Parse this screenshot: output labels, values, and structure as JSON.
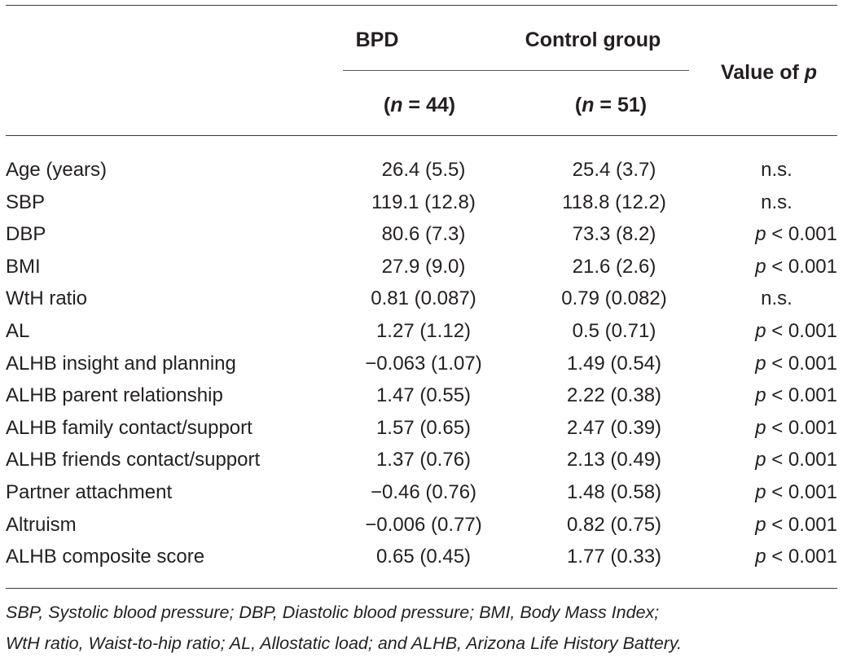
{
  "header": {
    "bpd": "BPD",
    "control": "Control group",
    "n_bpd_prefix": "(",
    "n_var": "n",
    "n_bpd_suffix": " = 44)",
    "n_ctrl_suffix": " = 51)",
    "p_label": "Value of ",
    "p_var": "p"
  },
  "rows": [
    {
      "label": "Age (years)",
      "bpd": "26.4 (5.5)",
      "ctrl": "25.4 (3.7)",
      "p": "n.s."
    },
    {
      "label": "SBP",
      "bpd": "119.1 (12.8)",
      "ctrl": "118.8 (12.2)",
      "p": "n.s."
    },
    {
      "label": "DBP",
      "bpd": "80.6 (7.3)",
      "ctrl": "73.3 (8.2)",
      "p_var": "p",
      "p": " < 0.001"
    },
    {
      "label": "BMI",
      "bpd": "27.9 (9.0)",
      "ctrl": "21.6 (2.6)",
      "p_var": "p",
      "p": " < 0.001"
    },
    {
      "label": "WtH ratio",
      "bpd": "0.81 (0.087)",
      "ctrl": "0.79 (0.082)",
      "p": "n.s."
    },
    {
      "label": "AL",
      "bpd": "1.27 (1.12)",
      "ctrl": "0.5 (0.71)",
      "p_var": "p",
      "p": " < 0.001"
    },
    {
      "label": "ALHB insight and planning",
      "bpd": "−0.063 (1.07)",
      "ctrl": "1.49 (0.54)",
      "p_var": "p",
      "p": " < 0.001"
    },
    {
      "label": "ALHB parent relationship",
      "bpd": "1.47 (0.55)",
      "ctrl": "2.22 (0.38)",
      "p_var": "p",
      "p": " < 0.001"
    },
    {
      "label": "ALHB family contact/support",
      "bpd": "1.57 (0.65)",
      "ctrl": "2.47 (0.39)",
      "p_var": "p",
      "p": " < 0.001"
    },
    {
      "label": "ALHB friends contact/support",
      "bpd": "1.37 (0.76)",
      "ctrl": "2.13 (0.49)",
      "p_var": "p",
      "p": " < 0.001"
    },
    {
      "label": "Partner attachment",
      "bpd": "−0.46 (0.76)",
      "ctrl": "1.48 (0.58)",
      "p_var": "p",
      "p": " < 0.001"
    },
    {
      "label": "Altruism",
      "bpd": "−0.006 (0.77)",
      "ctrl": "0.82 (0.75)",
      "p_var": "p",
      "p": " < 0.001"
    },
    {
      "label": "ALHB composite score",
      "bpd": "0.65 (0.45)",
      "ctrl": "1.77 (0.33)",
      "p_var": "p",
      "p": " < 0.001"
    }
  ],
  "footnote": {
    "line1": "SBP, Systolic blood pressure; DBP, Diastolic blood pressure; BMI, Body Mass Index;",
    "line2": "WtH ratio, Waist-to-hip ratio; AL, Allostatic load; and ALHB, Arizona Life History Battery."
  }
}
